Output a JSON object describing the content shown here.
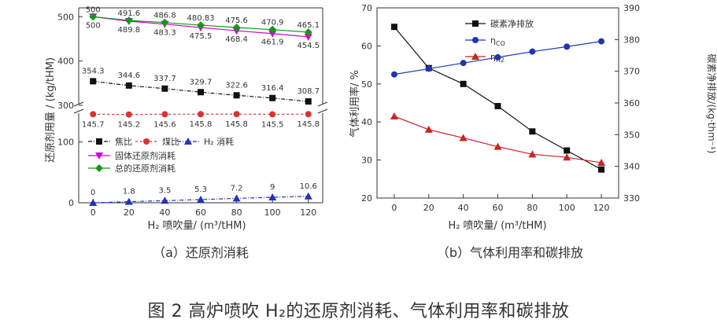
{
  "caption": "图 2 高炉喷吹 H₂的还原剂消耗、气体利用率和碳排放",
  "colors": {
    "coke": "#111111",
    "coal": "#e03030",
    "h2": "#2233bb",
    "solid": "#d000d0",
    "total": "#159915",
    "carbon": "#111111",
    "eta_co": "#2233bb",
    "eta_h2": "#cc2222",
    "axis": "#333333"
  },
  "chart_data": [
    {
      "type": "line",
      "subtitle": "（a）还原剂消耗",
      "xlabel": "H₂ 喷吹量/ (m³/tHM)",
      "ylabel": "还原剂用量 / (kg/tHM)",
      "x": [
        0,
        20,
        40,
        60,
        80,
        100,
        120
      ],
      "xlim": [
        -8,
        128
      ],
      "y_axis_break": {
        "lower": [
          0,
          150
        ],
        "upper": [
          300,
          520
        ]
      },
      "y_ticks": [
        0,
        100,
        300,
        400,
        500
      ],
      "grid": false,
      "legend_position": "bottom-left",
      "series": [
        {
          "name": "焦比",
          "values": [
            354.3,
            344.6,
            337.7,
            329.7,
            322.6,
            316.4,
            308.7
          ],
          "labels": [
            "354.3",
            "344.6",
            "337.7",
            "329.7",
            "322.6",
            "316.4",
            "308.7"
          ],
          "marker": "square"
        },
        {
          "name": "煤比",
          "values": [
            145.7,
            145.2,
            145.6,
            145.8,
            145.8,
            145.5,
            145.8
          ],
          "labels": [
            "145.7",
            "145.2",
            "145.6",
            "145.8",
            "145.8",
            "145.5",
            "145.8"
          ],
          "marker": "circle"
        },
        {
          "name": "H₂ 消耗",
          "values": [
            0,
            1.8,
            3.5,
            5.3,
            7.2,
            9,
            10.6
          ],
          "labels": [
            "0",
            "1.8",
            "3.5",
            "5.3",
            "7.2",
            "9",
            "10.6"
          ],
          "marker": "triangle"
        },
        {
          "name": "固体还原剂消耗",
          "values": [
            500,
            489.8,
            483.3,
            475.5,
            468.4,
            461.9,
            454.5
          ],
          "labels": [
            "500",
            "489.8",
            "483.3",
            "475.5",
            "468.4",
            "461.9",
            "454.5"
          ],
          "marker": "triangle-down"
        },
        {
          "name": "总的还原剂消耗",
          "values": [
            500,
            491.6,
            486.8,
            480.83,
            475.6,
            470.9,
            465.1
          ],
          "labels": [
            "500",
            "491.6",
            "486.8",
            "480.83",
            "475.6",
            "470.9",
            "465.1"
          ],
          "marker": "diamond"
        }
      ]
    },
    {
      "type": "line",
      "subtitle": "（b）气体利用率和碳排放",
      "xlabel": "H₂ 喷吹量/ (m³/tHM)",
      "ylabel_left": "气体利用率/ %",
      "ylabel_right": "碳素净排放/(kg·thm⁻¹)",
      "x": [
        0,
        20,
        40,
        60,
        80,
        100,
        120
      ],
      "xlim": [
        -10,
        130
      ],
      "ylim_left": [
        20,
        70
      ],
      "ylim_right": [
        330,
        390
      ],
      "y_ticks_left": [
        20,
        30,
        40,
        50,
        60,
        70
      ],
      "y_ticks_right": [
        330,
        340,
        350,
        360,
        370,
        380,
        390
      ],
      "grid": false,
      "legend_position": "top-right",
      "series": [
        {
          "name": "碳素净排放",
          "axis": "right",
          "values": [
            384,
            371,
            366,
            359,
            351,
            345,
            339
          ],
          "marker": "square"
        },
        {
          "name": "ηCO",
          "name_main": "η",
          "name_sub": "CO",
          "axis": "left",
          "values": [
            52.5,
            54,
            55.5,
            57,
            58.5,
            59.8,
            61.2
          ],
          "marker": "circle"
        },
        {
          "name": "ηH2",
          "name_main": "η",
          "name_sub": "H2",
          "axis": "left",
          "values": [
            41.5,
            38,
            35.8,
            33.5,
            31.5,
            30.7,
            29.3
          ],
          "marker": "triangle"
        }
      ]
    }
  ]
}
